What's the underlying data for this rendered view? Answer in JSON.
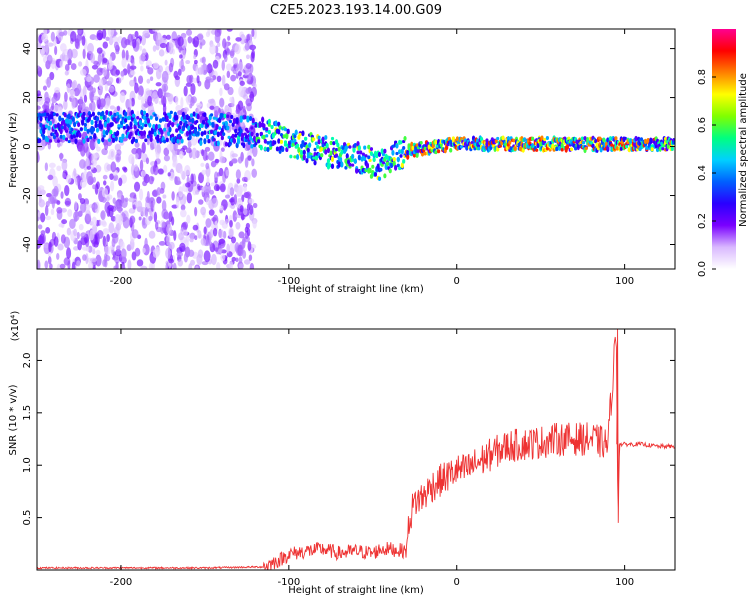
{
  "title": "C2E5.2023.193.14.00.G09",
  "chart_data": [
    {
      "type": "heatmap",
      "xlabel": "Height of straight line (km)",
      "ylabel": "Frequency (Hz)",
      "xlim": [
        -250,
        130
      ],
      "ylim": [
        -50,
        48
      ],
      "xticks": [
        -200,
        -100,
        0,
        100
      ],
      "yticks": [
        -40,
        -20,
        0,
        20,
        40
      ],
      "colorbar": {
        "label": "Normalized spectral amplitude",
        "range": [
          0.0,
          1.0
        ],
        "ticks": [
          0.0,
          0.2,
          0.4,
          0.6,
          0.8
        ],
        "colors": [
          "#ffffff",
          "#d9b8ff",
          "#7a00ff",
          "#2a00ff",
          "#0060ff",
          "#00d0ff",
          "#00ff80",
          "#80ff00",
          "#ffff00",
          "#ff8000",
          "#ff0000",
          "#ff0090"
        ]
      },
      "ridge": [
        {
          "x": -250,
          "y": 8
        },
        {
          "x": -200,
          "y": 8
        },
        {
          "x": -170,
          "y": 8
        },
        {
          "x": -120,
          "y": 6
        },
        {
          "x": -100,
          "y": 2
        },
        {
          "x": -80,
          "y": -2
        },
        {
          "x": -60,
          "y": -4
        },
        {
          "x": -45,
          "y": -8
        },
        {
          "x": -40,
          "y": -5
        },
        {
          "x": -30,
          "y": -2
        },
        {
          "x": -15,
          "y": 0
        },
        {
          "x": 0,
          "y": 1
        },
        {
          "x": 50,
          "y": 1
        },
        {
          "x": 100,
          "y": 1
        },
        {
          "x": 130,
          "y": 1
        }
      ]
    },
    {
      "type": "line",
      "xlabel": "Height of straight line (km)",
      "ylabel": "SNR (10 * v/v)",
      "scale_note": "(x10⁴)",
      "xlim": [
        -250,
        130
      ],
      "ylim": [
        0,
        2.3
      ],
      "xticks": [
        -200,
        -100,
        0,
        100
      ],
      "yticks": [
        0.5,
        1.0,
        1.5,
        2.0
      ],
      "ytick_labels": [
        "0.5",
        "1.0",
        "1.5",
        "2.0"
      ],
      "color": "#ee3333",
      "series": [
        {
          "x": [
            -250,
            -200,
            -150,
            -115,
            -105,
            -100,
            -90,
            -80,
            -70,
            -60,
            -50,
            -45,
            -40,
            -30,
            -28,
            -25,
            -20,
            -15,
            -10,
            -5,
            0,
            5,
            10,
            20,
            30,
            40,
            50,
            60,
            70,
            80,
            90,
            95,
            96,
            97,
            98,
            100,
            110,
            120,
            130
          ],
          "y": [
            0.02,
            0.02,
            0.02,
            0.03,
            0.1,
            0.15,
            0.18,
            0.2,
            0.16,
            0.18,
            0.16,
            0.2,
            0.2,
            0.18,
            0.5,
            0.65,
            0.7,
            0.8,
            0.85,
            0.9,
            0.95,
            0.95,
            1.0,
            1.1,
            1.18,
            1.2,
            1.22,
            1.25,
            1.25,
            1.25,
            1.2,
            2.3,
            0.5,
            1.2,
            1.2,
            1.2,
            1.2,
            1.18,
            1.18
          ]
        }
      ]
    }
  ]
}
